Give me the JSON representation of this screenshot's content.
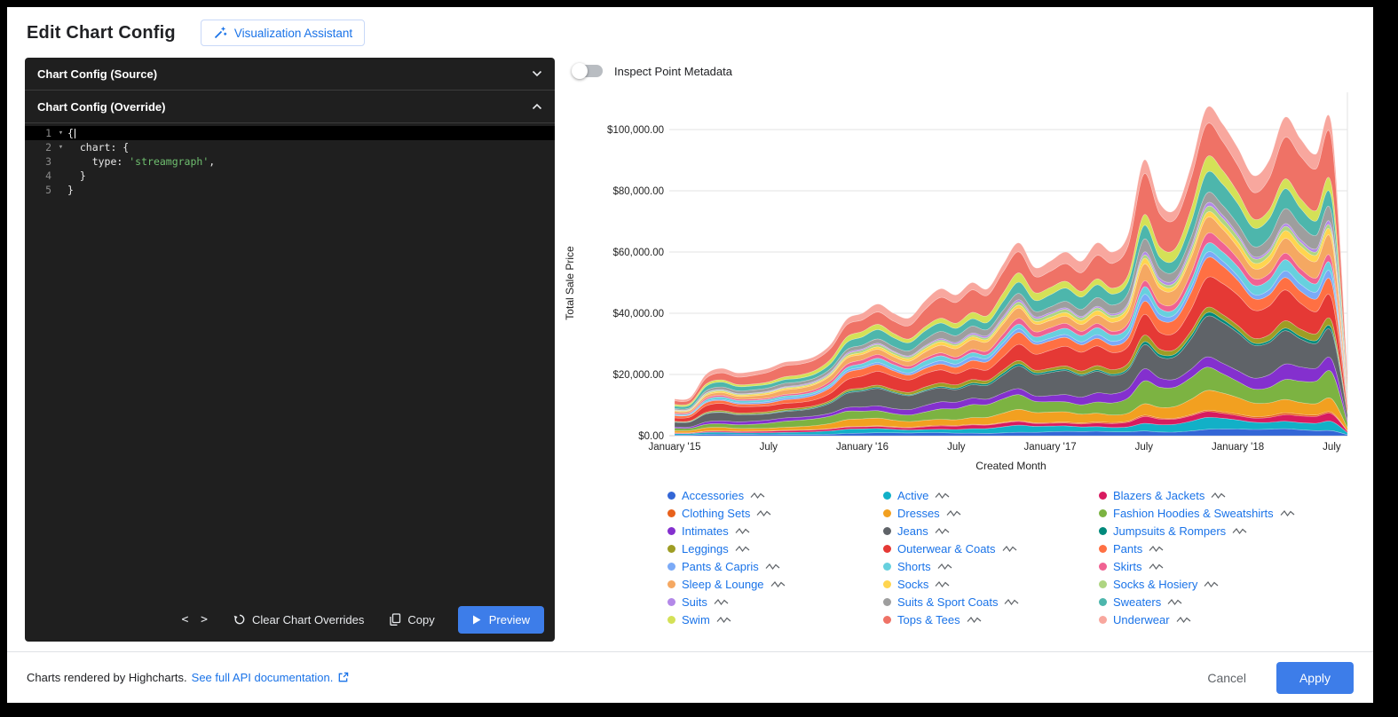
{
  "header": {
    "title": "Edit Chart Config",
    "assistant_button": "Visualization Assistant"
  },
  "editor": {
    "source_header": "Chart Config (Source)",
    "override_header": "Chart Config (Override)",
    "code_lines": [
      {
        "num": "1",
        "fold": "▾",
        "pre": "{",
        "string": "",
        "post": "",
        "active": true
      },
      {
        "num": "2",
        "fold": "▾",
        "pre": "  chart: {",
        "string": "",
        "post": ""
      },
      {
        "num": "3",
        "fold": "",
        "pre": "    type: ",
        "string": "'streamgraph'",
        "post": ","
      },
      {
        "num": "4",
        "fold": "",
        "pre": "  }",
        "string": "",
        "post": ""
      },
      {
        "num": "5",
        "fold": "",
        "pre": "}",
        "string": "",
        "post": ""
      }
    ],
    "toolbar": {
      "code_glyph": "< >",
      "clear_label": "Clear Chart Overrides",
      "copy_label": "Copy",
      "preview_label": "Preview"
    }
  },
  "inspect_toggle": {
    "label": "Inspect Point Metadata",
    "state": "off"
  },
  "chart_data": {
    "type": "area",
    "stacking": "normal",
    "override_type": "streamgraph",
    "title": "",
    "xlabel": "Created Month",
    "ylabel": "Total Sale Price",
    "ylim": [
      0,
      110000
    ],
    "grid": "horizontal",
    "legend_position": "bottom",
    "y_ticks": [
      "$0.00",
      "$20,000.00",
      "$40,000.00",
      "$60,000.00",
      "$80,000.00",
      "$100,000.00"
    ],
    "y_tick_values": [
      0,
      20000,
      40000,
      60000,
      80000,
      100000
    ],
    "x_tick_indices": [
      0,
      6,
      12,
      18,
      24,
      30,
      36,
      42
    ],
    "x_tick_labels": [
      "January '15",
      "July",
      "January '16",
      "July",
      "January '17",
      "July",
      "January '18",
      "July"
    ],
    "months": [
      "2015-01",
      "2015-02",
      "2015-03",
      "2015-04",
      "2015-05",
      "2015-06",
      "2015-07",
      "2015-08",
      "2015-09",
      "2015-10",
      "2015-11",
      "2015-12",
      "2016-01",
      "2016-02",
      "2016-03",
      "2016-04",
      "2016-05",
      "2016-06",
      "2016-07",
      "2016-08",
      "2016-09",
      "2016-10",
      "2016-11",
      "2016-12",
      "2017-01",
      "2017-02",
      "2017-03",
      "2017-04",
      "2017-05",
      "2017-06",
      "2017-07",
      "2017-08",
      "2017-09",
      "2017-10",
      "2017-11",
      "2017-12",
      "2018-01",
      "2018-02",
      "2018-03",
      "2018-04",
      "2018-05",
      "2018-06",
      "2018-07",
      "2018-08"
    ],
    "totals": [
      12000,
      12500,
      20000,
      22000,
      20500,
      21000,
      22000,
      24000,
      24500,
      26000,
      30000,
      38000,
      40000,
      43000,
      40000,
      38500,
      44000,
      48000,
      46000,
      50000,
      48000,
      56000,
      63000,
      55000,
      57000,
      60000,
      57000,
      63000,
      60000,
      66000,
      90000,
      76000,
      74000,
      88000,
      107000,
      102000,
      94000,
      85000,
      90000,
      104000,
      97000,
      92000,
      101000,
      20000
    ],
    "series": [
      {
        "name": "Accessories",
        "color": "#3366d6",
        "share": 0.02
      },
      {
        "name": "Active",
        "color": "#12b0c7",
        "share": 0.03
      },
      {
        "name": "Blazers & Jackets",
        "color": "#d81b60",
        "share": 0.02
      },
      {
        "name": "Clothing Sets",
        "color": "#e8611c",
        "share": 0.005
      },
      {
        "name": "Dresses",
        "color": "#f2a020",
        "share": 0.05
      },
      {
        "name": "Fashion Hoodies & Sweatshirts",
        "color": "#7cb342",
        "share": 0.07
      },
      {
        "name": "Intimates",
        "color": "#8430ce",
        "share": 0.04
      },
      {
        "name": "Jeans",
        "color": "#5f6368",
        "share": 0.11
      },
      {
        "name": "Jumpsuits & Rompers",
        "color": "#00897b",
        "share": 0.01
      },
      {
        "name": "Leggings",
        "color": "#9e9d24",
        "share": 0.02
      },
      {
        "name": "Outerwear & Coats",
        "color": "#e53935",
        "share": 0.09
      },
      {
        "name": "Pants",
        "color": "#ff7043",
        "share": 0.05
      },
      {
        "name": "Pants & Capris",
        "color": "#7baaf7",
        "share": 0.02
      },
      {
        "name": "Shorts",
        "color": "#67d0de",
        "share": 0.03
      },
      {
        "name": "Skirts",
        "color": "#f06292",
        "share": 0.025
      },
      {
        "name": "Sleep & Lounge",
        "color": "#f5a862",
        "share": 0.05
      },
      {
        "name": "Socks",
        "color": "#ffd54f",
        "share": 0.02
      },
      {
        "name": "Socks & Hosiery",
        "color": "#aed581",
        "share": 0.015
      },
      {
        "name": "Suits",
        "color": "#b388e8",
        "share": 0.01
      },
      {
        "name": "Suits & Sport Coats",
        "color": "#9e9e9e",
        "share": 0.04
      },
      {
        "name": "Sweaters",
        "color": "#4db6ac",
        "share": 0.06
      },
      {
        "name": "Swim",
        "color": "#d4e157",
        "share": 0.04
      },
      {
        "name": "Tops & Tees",
        "color": "#ef7266",
        "share": 0.12
      },
      {
        "name": "Underwear",
        "color": "#f8a79e",
        "share": 0.055
      }
    ]
  },
  "footer": {
    "note": "Charts rendered by Highcharts.",
    "link": "See full API documentation.",
    "cancel": "Cancel",
    "apply": "Apply"
  }
}
